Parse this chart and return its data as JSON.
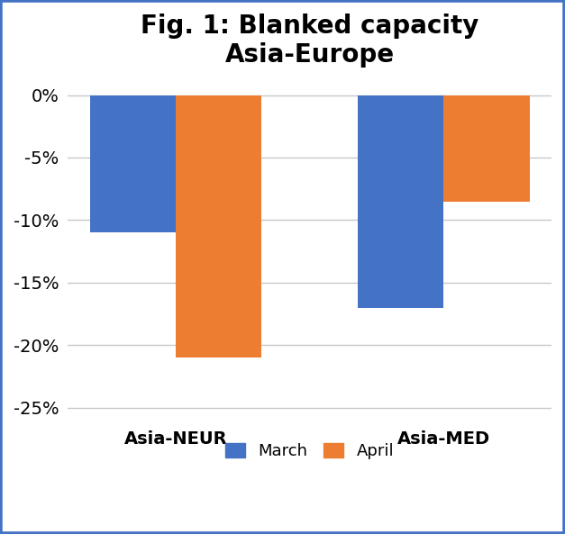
{
  "title": "Fig. 1: Blanked capacity\nAsia-Europe",
  "categories": [
    "Asia-NEUR",
    "Asia-MED"
  ],
  "march_values": [
    -11,
    -17
  ],
  "april_values": [
    -21,
    -8.5
  ],
  "bar_color_march": "#4472C4",
  "bar_color_april": "#ED7D31",
  "ylim": [
    -26,
    1
  ],
  "yticks": [
    0,
    -5,
    -10,
    -15,
    -20,
    -25
  ],
  "ylabel": "",
  "xlabel": "",
  "legend_labels": [
    "March",
    "April"
  ],
  "title_fontsize": 20,
  "tick_fontsize": 14,
  "label_fontsize": 14,
  "legend_fontsize": 13,
  "background_color": "#ffffff",
  "border_color": "#4472C4",
  "grid_color": "#c8c8c8",
  "bar_width": 0.32
}
